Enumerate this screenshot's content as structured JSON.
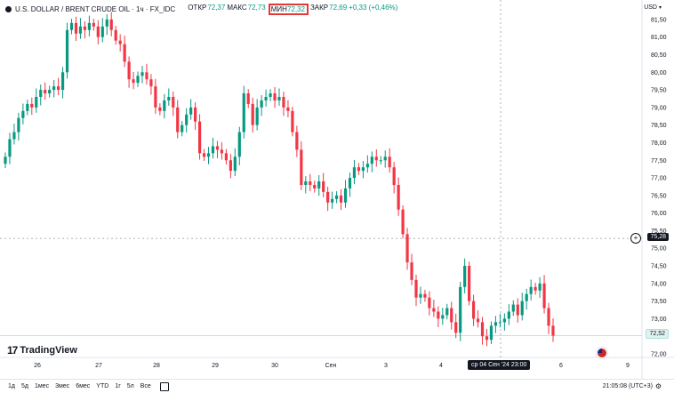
{
  "header": {
    "title": "U.S. DOLLAR / BRENT CRUDE OIL · 1ч · FX_IDC",
    "open_label": "ОТКР",
    "open_value": "72,37",
    "high_label": "МАКС",
    "high_value": "72,73",
    "low_label": "МИН",
    "low_value": "72,32",
    "close_label": "ЗАКР",
    "close_value": "72,69",
    "change": "+0,33 (+0,46%)"
  },
  "currency": "USD",
  "price_axis": [
    "81,50",
    "81,00",
    "80,50",
    "80,00",
    "79,50",
    "79,00",
    "78,50",
    "78,00",
    "77,50",
    "77,00",
    "76,50",
    "76,00",
    "75,50",
    "75,00",
    "74,50",
    "74,00",
    "73,50",
    "73,00",
    "72,50",
    "72,00"
  ],
  "crosshair_price": "75,28",
  "last_price": "72,52",
  "time_axis": [
    "26",
    "27",
    "28",
    "29",
    "30",
    "Сен",
    "3",
    "4",
    "6",
    "9"
  ],
  "crosshair_time": "ср 04 Сен '24   23:00",
  "brand": "TradingView",
  "periods": [
    "1д",
    "5д",
    "1мес",
    "3мес",
    "6мес",
    "YTD",
    "1г",
    "5л",
    "Все"
  ],
  "clock": "21:05:08 (UTC+3)",
  "colors": {
    "up": "#089981",
    "down": "#f23645",
    "accent": "#e53935"
  },
  "icons": {
    "settings": "gear-icon",
    "add": "plus-icon",
    "calendar": "calendar-icon",
    "flag": "us-flag-icon"
  },
  "chart_data": {
    "type": "candlestick",
    "ylim": [
      72.0,
      81.75
    ],
    "closes": [
      77.6,
      78.1,
      78.3,
      78.7,
      78.9,
      79.1,
      79.0,
      79.3,
      79.5,
      79.4,
      79.5,
      79.6,
      79.5,
      80.0,
      81.2,
      81.4,
      81.1,
      81.3,
      81.2,
      81.4,
      81.3,
      81.0,
      81.3,
      81.5,
      81.2,
      80.9,
      80.8,
      80.3,
      79.8,
      79.7,
      79.9,
      80.0,
      79.8,
      79.6,
      79.0,
      78.9,
      79.2,
      79.3,
      79.0,
      78.3,
      78.5,
      78.8,
      79.0,
      78.6,
      77.7,
      77.6,
      77.7,
      77.9,
      77.8,
      77.7,
      77.5,
      77.2,
      77.6,
      78.3,
      79.4,
      79.1,
      78.5,
      79.0,
      79.2,
      79.3,
      79.4,
      79.2,
      79.3,
      79.0,
      78.9,
      78.3,
      77.8,
      76.8,
      76.9,
      76.8,
      76.7,
      76.9,
      76.6,
      76.3,
      76.4,
      76.5,
      76.3,
      76.7,
      77.0,
      77.3,
      77.2,
      77.3,
      77.4,
      77.6,
      77.5,
      77.5,
      77.6,
      77.3,
      76.8,
      76.1,
      75.4,
      74.6,
      74.1,
      73.6,
      73.7,
      73.6,
      73.3,
      73.2,
      73.0,
      73.1,
      73.3,
      72.9,
      72.6,
      73.9,
      74.5,
      73.5,
      73.0,
      72.9,
      72.5,
      72.4,
      72.8,
      72.9,
      72.9,
      73.0,
      73.2,
      73.4,
      73.1,
      73.5,
      73.7,
      73.9,
      73.8,
      74.0,
      73.3,
      72.8,
      72.52
    ],
    "crosshair_x_label": "ср 04 Сен '24   23:00"
  }
}
